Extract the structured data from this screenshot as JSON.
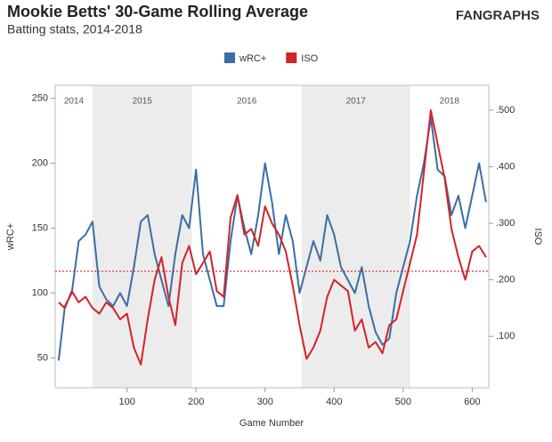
{
  "chart_data": {
    "type": "line",
    "title": "Mookie Betts' 30-Game Rolling Average",
    "subtitle": "Batting stats, 2014-2018",
    "source": "FANGRAPHS",
    "x_label": "Game Number",
    "y_label": "wRC+",
    "y2_label": "ISO",
    "x": [
      1,
      10,
      20,
      30,
      40,
      50,
      60,
      70,
      80,
      90,
      100,
      110,
      120,
      130,
      140,
      150,
      160,
      170,
      180,
      190,
      200,
      210,
      220,
      230,
      240,
      250,
      260,
      270,
      280,
      290,
      300,
      310,
      320,
      330,
      340,
      350,
      360,
      370,
      380,
      390,
      400,
      410,
      420,
      430,
      440,
      450,
      460,
      470,
      480,
      490,
      500,
      510,
      520,
      530,
      540,
      550,
      560,
      570,
      580,
      590,
      600,
      610,
      620
    ],
    "series": [
      {
        "name": "wRC+",
        "color": "#3a6ea5",
        "axis": "y",
        "values": [
          48,
          90,
          100,
          140,
          145,
          155,
          105,
          95,
          90,
          100,
          90,
          120,
          155,
          160,
          130,
          110,
          90,
          130,
          160,
          150,
          195,
          130,
          110,
          90,
          90,
          140,
          175,
          150,
          130,
          160,
          200,
          170,
          130,
          160,
          140,
          100,
          120,
          140,
          125,
          160,
          145,
          120,
          110,
          100,
          120,
          90,
          70,
          60,
          65,
          100,
          120,
          140,
          175,
          200,
          235,
          195,
          190,
          160,
          175,
          150,
          175,
          200,
          170
        ]
      },
      {
        "name": "ISO",
        "color": "#d2232a",
        "axis": "y2",
        "values": [
          0.16,
          0.15,
          0.18,
          0.16,
          0.17,
          0.15,
          0.14,
          0.16,
          0.15,
          0.13,
          0.14,
          0.08,
          0.05,
          0.13,
          0.2,
          0.24,
          0.17,
          0.12,
          0.23,
          0.26,
          0.21,
          0.23,
          0.25,
          0.18,
          0.17,
          0.31,
          0.35,
          0.28,
          0.29,
          0.26,
          0.33,
          0.3,
          0.28,
          0.25,
          0.19,
          0.12,
          0.06,
          0.08,
          0.11,
          0.17,
          0.2,
          0.19,
          0.18,
          0.11,
          0.13,
          0.08,
          0.09,
          0.07,
          0.12,
          0.13,
          0.18,
          0.23,
          0.28,
          0.39,
          0.5,
          0.44,
          0.38,
          0.29,
          0.24,
          0.2,
          0.25,
          0.26,
          0.24
        ]
      }
    ],
    "seasons": [
      {
        "label": "2014",
        "start": -4,
        "end": 50,
        "shaded": false
      },
      {
        "label": "2015",
        "start": 50,
        "end": 194,
        "shaded": true
      },
      {
        "label": "2016",
        "start": 194,
        "end": 353,
        "shaded": false
      },
      {
        "label": "2017",
        "start": 353,
        "end": 510,
        "shaded": true
      },
      {
        "label": "2018",
        "start": 510,
        "end": 624,
        "shaded": false
      }
    ],
    "reference_line": {
      "value": 0.215,
      "axis": "y2",
      "color": "#d2232a"
    },
    "xlim": [
      -4,
      624
    ],
    "xticks": [
      100,
      200,
      300,
      400,
      500,
      600
    ],
    "ylim": [
      27,
      260
    ],
    "yticks": [
      50,
      100,
      150,
      200,
      250
    ],
    "y2lim": [
      0.009,
      0.544
    ],
    "y2ticks": [
      {
        "value": 0.1,
        "label": ".100"
      },
      {
        "value": 0.2,
        "label": ".200"
      },
      {
        "value": 0.3,
        "label": ".300"
      },
      {
        "value": 0.4,
        "label": ".400"
      },
      {
        "value": 0.5,
        "label": ".500"
      }
    ],
    "legend": "top"
  }
}
